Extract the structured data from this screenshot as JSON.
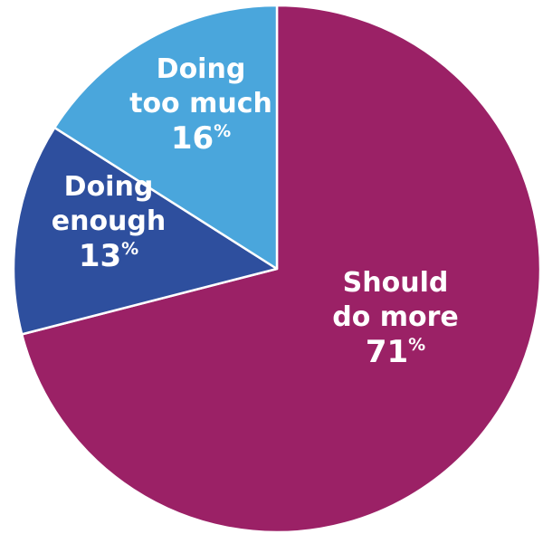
{
  "chart_data": {
    "type": "pie",
    "title": "",
    "slices": [
      {
        "label_lines": [
          "Should",
          "do more"
        ],
        "value": 71,
        "percent_text": "71",
        "color": "#9b2166"
      },
      {
        "label_lines": [
          "Doing",
          "enough"
        ],
        "value": 13,
        "percent_text": "13",
        "color": "#2e4f9e"
      },
      {
        "label_lines": [
          "Doing",
          "too much"
        ],
        "value": 16,
        "percent_text": "16",
        "color": "#4aa6dc"
      }
    ],
    "percent_sign": "%",
    "start": "12 o'clock",
    "direction": "clockwise",
    "separator_color": "#ffffff"
  }
}
